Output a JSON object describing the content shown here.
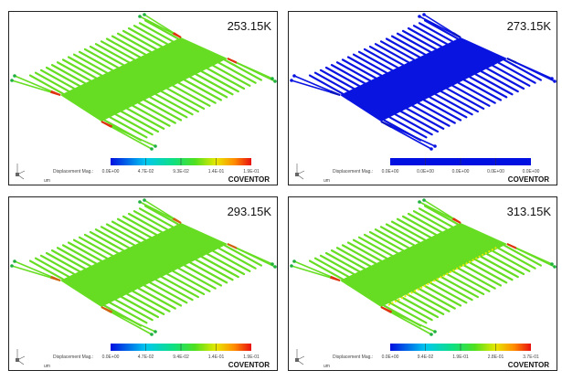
{
  "panels": [
    {
      "temperature": "253.15K",
      "scale": "full",
      "structure_color": "#66dd22",
      "spring_color": "#e03010",
      "colorbar": {
        "label": "Displacement Mag.:",
        "ticks": [
          "0.0E+00",
          "4.7E-02",
          "9.3E-02",
          "1.4E-01",
          "1.9E-01"
        ]
      },
      "unit": "um",
      "brand": "COVENTOR"
    },
    {
      "temperature": "273.15K",
      "scale": "uniform",
      "structure_color": "#0a14e0",
      "spring_color": "#0a14c0",
      "colorbar": {
        "label": "Displacement Mag.:",
        "ticks": [
          "0.0E+00",
          "0.0E+00",
          "0.0E+00",
          "0.0E+00",
          "0.0E+00"
        ]
      },
      "unit": "um",
      "brand": "COVENTOR"
    },
    {
      "temperature": "293.15K",
      "scale": "full",
      "structure_color": "#66dd22",
      "spring_color": "#d06010",
      "colorbar": {
        "label": "Displacement Mag.:",
        "ticks": [
          "0.0E+00",
          "4.7E-02",
          "9.4E-02",
          "1.4E-01",
          "1.9E-01"
        ]
      },
      "unit": "um",
      "brand": "COVENTOR"
    },
    {
      "temperature": "313.15K",
      "scale": "full",
      "structure_color": "#66dd22",
      "spring_color": "#e03010",
      "colorbar": {
        "label": "Displacement Mag.:",
        "ticks": [
          "0.0E+00",
          "9.4E-02",
          "1.9E-01",
          "2.8E-01",
          "3.7E-01"
        ]
      },
      "unit": "um",
      "brand": "COVENTOR"
    }
  ]
}
